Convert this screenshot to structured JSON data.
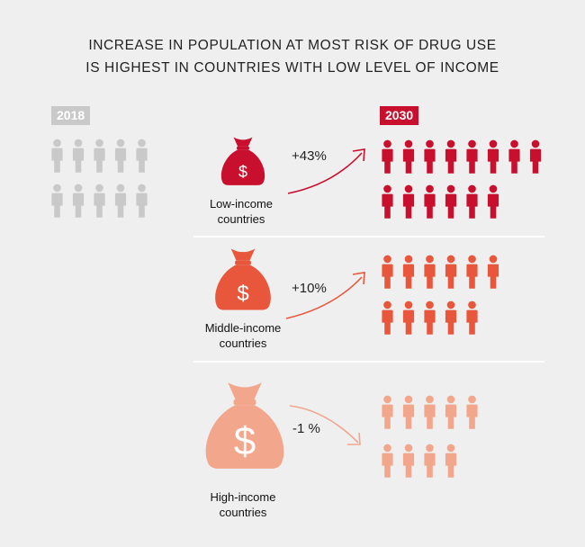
{
  "title_line1": "INCREASE IN POPULATION AT MOST RISK OF DRUG USE",
  "title_line2": "IS HIGHEST IN COUNTRIES WITH LOW LEVEL OF INCOME",
  "year_start": "2018",
  "year_end": "2030",
  "currency_symbol": "$",
  "colors": {
    "baseline": "#c9c9c9",
    "low": "#c8102e",
    "middle": "#e8563c",
    "high": "#f2a68b"
  },
  "groups": [
    {
      "label_line1": "Low-income",
      "label_line2": "countries",
      "change": "+43%",
      "change_value": 43,
      "people_2030_equivalent": 14.3
    },
    {
      "label_line1": "Middle-income",
      "label_line2": "countries",
      "change": "+10%",
      "change_value": 10,
      "people_2030_equivalent": 11
    },
    {
      "label_line1": "High-income",
      "label_line2": "countries",
      "change": "-1 %",
      "change_value": -1,
      "people_2030_equivalent": 9.9
    }
  ],
  "baseline_people": 10
}
